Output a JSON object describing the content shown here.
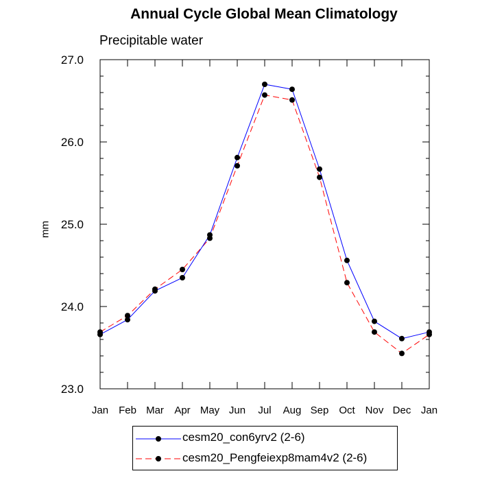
{
  "title": "Annual Cycle Global Mean Climatology",
  "subtitle": "Precipitable water",
  "chart_data": {
    "type": "line",
    "title": "Annual Cycle Global Mean Climatology",
    "subtitle": "Precipitable water",
    "ylabel": "mm",
    "xlabel": "",
    "categories": [
      "Jan",
      "Feb",
      "Mar",
      "Apr",
      "May",
      "Jun",
      "Jul",
      "Aug",
      "Sep",
      "Oct",
      "Nov",
      "Dec",
      "Jan"
    ],
    "ylim": [
      23.0,
      27.0
    ],
    "yticks": [
      23.0,
      24.0,
      25.0,
      26.0,
      27.0
    ],
    "ytick_labels": [
      "23.0",
      "24.0",
      "25.0",
      "26.0",
      "27.0"
    ],
    "grid": false,
    "legend_position": "bottom",
    "series": [
      {
        "name": "cesm20_con6yrv2 (2-6)",
        "color": "#0000ff",
        "dash": "solid",
        "marker": "dot",
        "values": [
          23.66,
          23.84,
          24.19,
          24.35,
          24.87,
          25.81,
          26.7,
          26.64,
          25.67,
          24.56,
          23.82,
          23.61,
          23.69
        ]
      },
      {
        "name": "cesm20_Pengfeiexp8mam4v2 (2-6)",
        "color": "#ff0000",
        "dash": "dashed",
        "marker": "dot",
        "values": [
          23.69,
          23.89,
          24.21,
          24.45,
          24.83,
          25.71,
          26.57,
          26.51,
          25.57,
          24.29,
          23.69,
          23.43,
          23.66
        ]
      }
    ]
  }
}
